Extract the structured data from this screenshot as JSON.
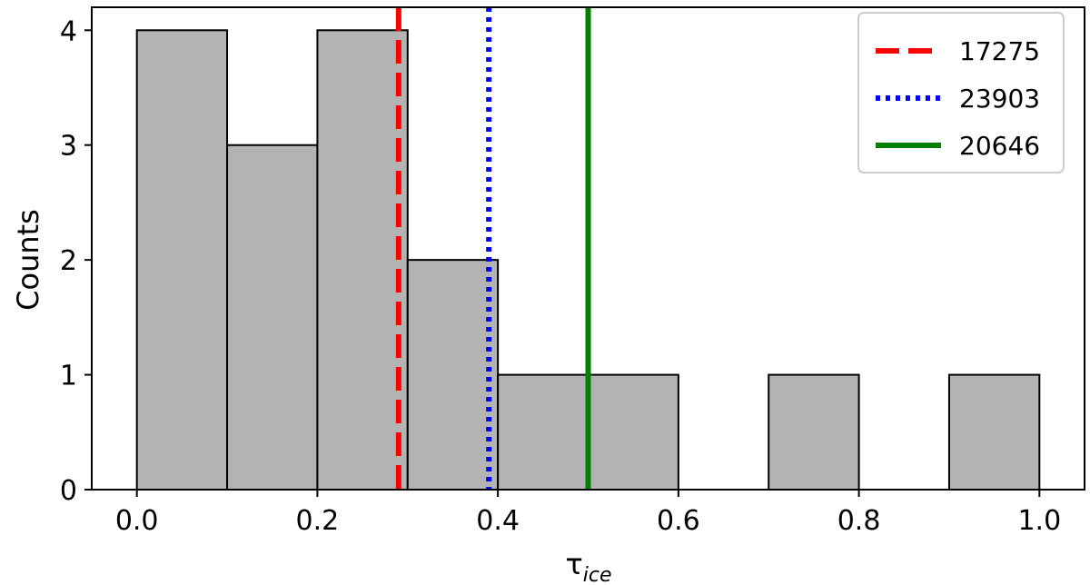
{
  "chart_data": {
    "type": "histogram",
    "xlabel": "τ",
    "xlabel_subscript": "ice",
    "ylabel": "Counts",
    "xlim": [
      -0.05,
      1.05
    ],
    "ylim": [
      0,
      4.2
    ],
    "xticks": [
      0.0,
      0.2,
      0.4,
      0.6,
      0.8,
      1.0
    ],
    "xtick_labels": [
      "0.0",
      "0.2",
      "0.4",
      "0.6",
      "0.8",
      "1.0"
    ],
    "yticks": [
      0,
      1,
      2,
      3,
      4
    ],
    "ytick_labels": [
      "0",
      "1",
      "2",
      "3",
      "4"
    ],
    "bin_edges": [
      0.0,
      0.1,
      0.2,
      0.3,
      0.4,
      0.5,
      0.6,
      0.7,
      0.8,
      0.9,
      1.0
    ],
    "counts": [
      4,
      3,
      4,
      2,
      1,
      1,
      0,
      1,
      0,
      1
    ],
    "bar_fill": "#b3b3b3",
    "bar_edge": "#000000",
    "vlines": [
      {
        "name": "17275",
        "x": 0.29,
        "color": "#ff0000",
        "style": "dashed"
      },
      {
        "name": "23903",
        "x": 0.39,
        "color": "#0000ff",
        "style": "dotted"
      },
      {
        "name": "20646",
        "x": 0.5,
        "color": "#008000",
        "style": "solid"
      }
    ],
    "legend_position": "top-right",
    "grid": false
  }
}
